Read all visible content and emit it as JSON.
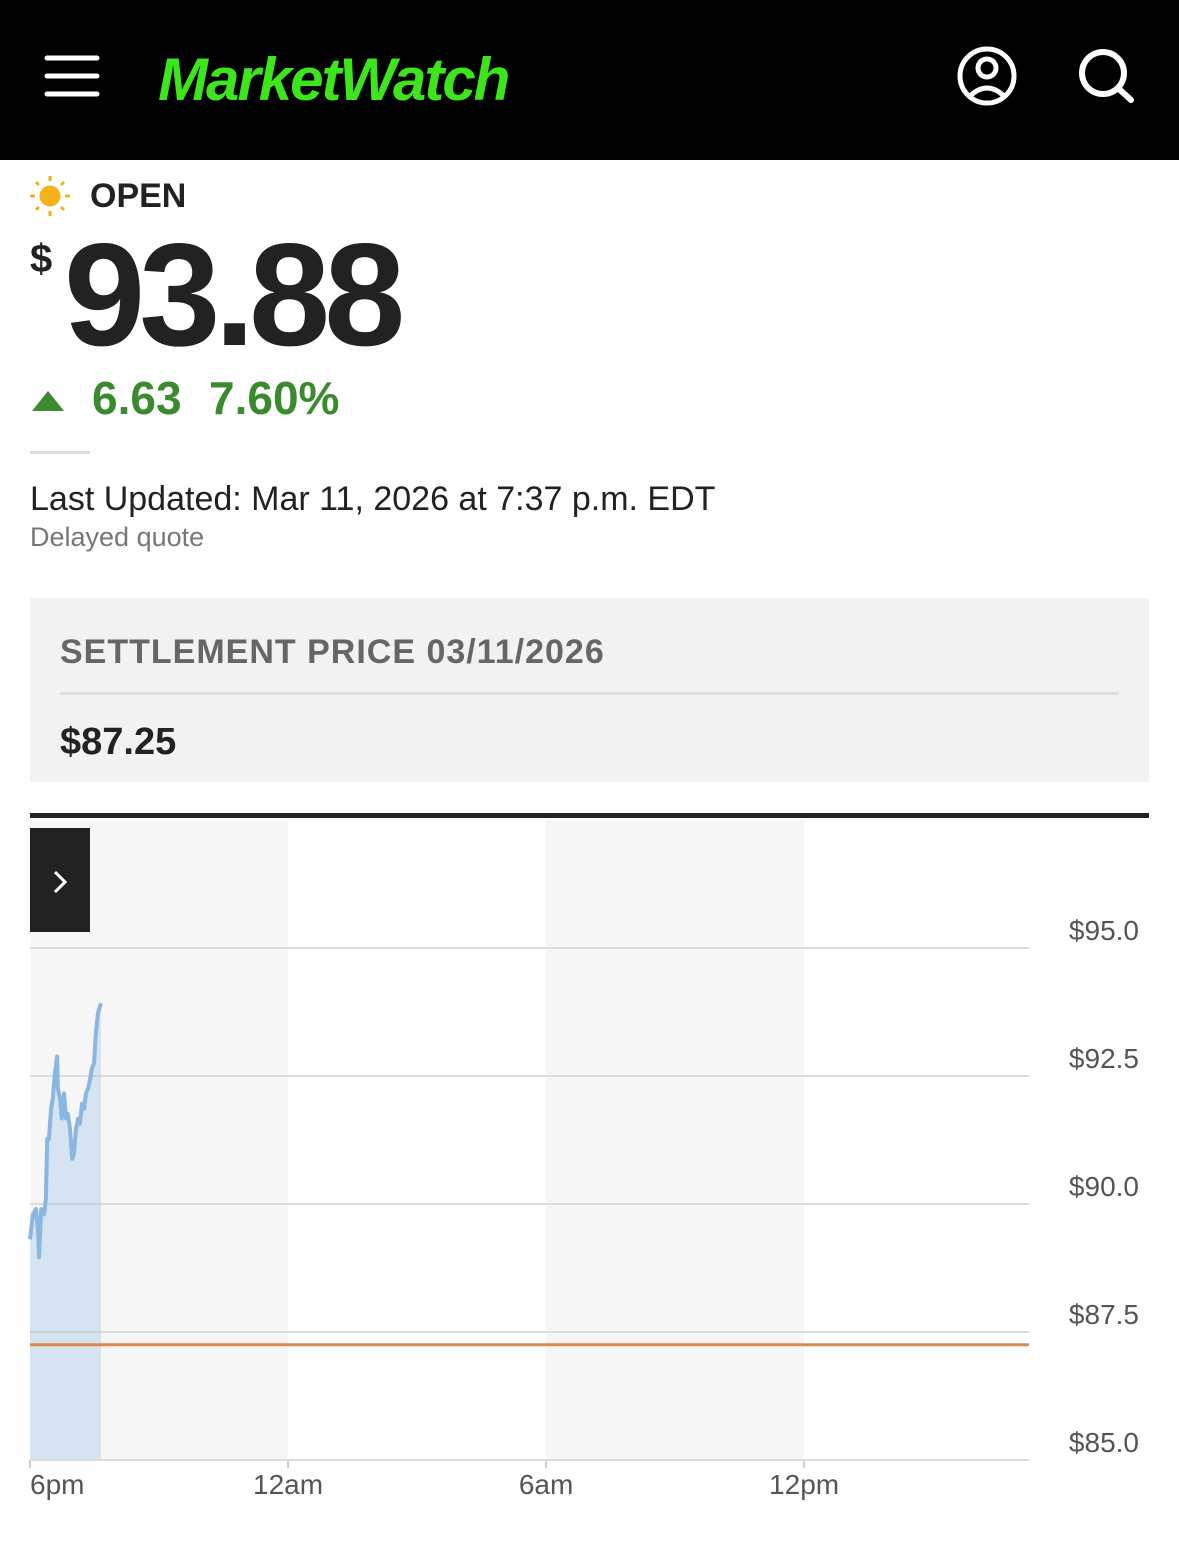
{
  "header": {
    "logo": "MarketWatch"
  },
  "quote": {
    "status": "OPEN",
    "currency": "$",
    "price": "93.88",
    "change": "6.63",
    "change_percent": "7.60%",
    "last_updated": "Last Updated: Mar 11, 2026 at 7:37 p.m. EDT",
    "note": "Delayed quote"
  },
  "settlement": {
    "label": "SETTLEMENT PRICE 03/11/2026",
    "price": "$87.25"
  },
  "chart_data": {
    "type": "line",
    "x": [
      0,
      0.07,
      0.14,
      0.19,
      0.21,
      0.26,
      0.33,
      0.37,
      0.4,
      0.44,
      0.49,
      0.53,
      0.58,
      0.63,
      0.65,
      0.7,
      0.74,
      0.79,
      0.84,
      0.88,
      0.93,
      0.98,
      1.02,
      1.07,
      1.12,
      1.16,
      1.21,
      1.26,
      1.3,
      1.35,
      1.4,
      1.44,
      1.49,
      1.53,
      1.58,
      1.65
    ],
    "series": [
      {
        "color": "#8ab6e2",
        "values": [
          89.31,
          89.8,
          89.9,
          89.41,
          88.96,
          89.9,
          89.8,
          90.1,
          91.27,
          91.27,
          91.86,
          92.06,
          92.55,
          92.88,
          92.25,
          92.06,
          91.67,
          92.16,
          91.67,
          91.76,
          91.47,
          90.88,
          90.98,
          91.47,
          91.67,
          91.57,
          91.96,
          91.86,
          92.16,
          92.25,
          92.45,
          92.65,
          92.75,
          93.33,
          93.73,
          93.92
        ]
      }
    ],
    "reference_line": {
      "value": 87.25,
      "color": "#e0864f"
    },
    "xlim": [
      0,
      23.23
    ],
    "xticks": [
      {
        "value": 0,
        "label": "6pm"
      },
      {
        "value": 6,
        "label": "12am"
      },
      {
        "value": 12,
        "label": "6am"
      },
      {
        "value": 18,
        "label": "12pm"
      }
    ],
    "ylim": [
      85,
      97.5
    ],
    "yticks": [
      {
        "value": 85,
        "label": "$85.0"
      },
      {
        "value": 87.5,
        "label": "$87.5"
      },
      {
        "value": 90,
        "label": "$90.0"
      },
      {
        "value": 92.5,
        "label": "$92.5"
      },
      {
        "value": 95,
        "label": "$95.0"
      }
    ],
    "grid": true
  }
}
